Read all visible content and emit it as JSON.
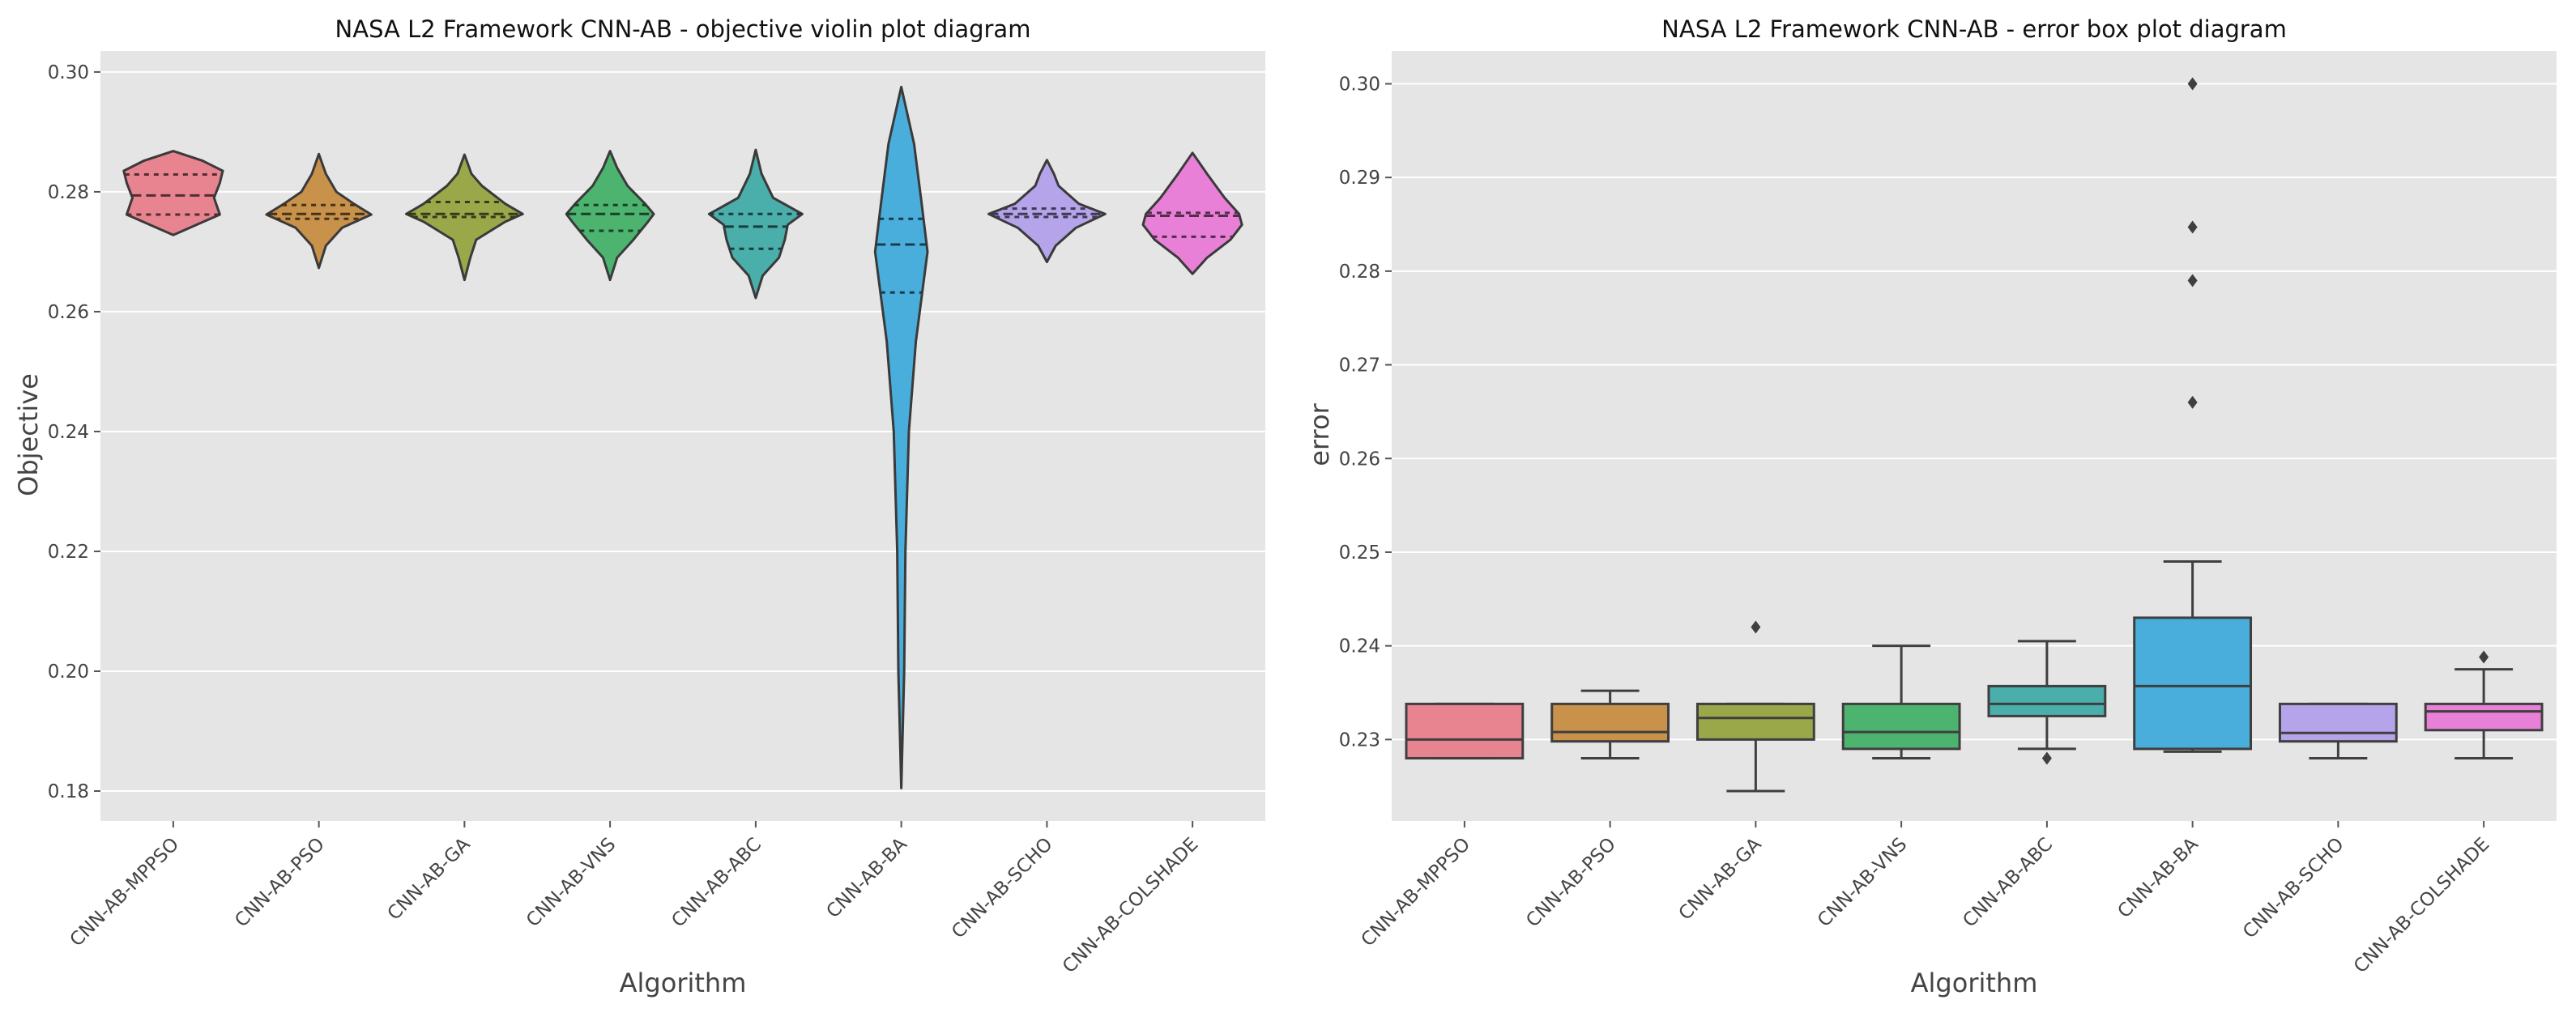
{
  "chart_data": [
    {
      "type": "violin",
      "title": "NASA L2 Framework CNN-AB -  objective violin plot diagram",
      "xlabel": "Algorithm",
      "ylabel": "Objective",
      "ylim": [
        0.175,
        0.3035
      ],
      "yticks": [
        0.18,
        0.2,
        0.22,
        0.24,
        0.26,
        0.28,
        0.3
      ],
      "ytick_labels": [
        "0.18",
        "0.20",
        "0.22",
        "0.24",
        "0.26",
        "0.28",
        "0.30"
      ],
      "grid": true,
      "categories": [
        "CNN-AB-MPPSO",
        "CNN-AB-PSO",
        "CNN-AB-GA",
        "CNN-AB-VNS",
        "CNN-AB-ABC",
        "CNN-AB-BA",
        "CNN-AB-SCHO",
        "CNN-AB-COLSHADE"
      ],
      "colors": [
        "#e8848f",
        "#c9924a",
        "#9aa84a",
        "#4db470",
        "#4aaeab",
        "#4aaedc",
        "#b5a4ea",
        "#e980d8"
      ],
      "violins": [
        {
          "profile": [
            [
              0.2728,
              0
            ],
            [
              0.2745,
              0.4
            ],
            [
              0.2762,
              0.8
            ],
            [
              0.279,
              0.7
            ],
            [
              0.2815,
              0.8
            ],
            [
              0.2835,
              0.85
            ],
            [
              0.2852,
              0.5
            ],
            [
              0.2868,
              0
            ]
          ],
          "q1": 0.2762,
          "median": 0.2794,
          "q3": 0.2829
        },
        {
          "profile": [
            [
              0.2673,
              0
            ],
            [
              0.271,
              0.12
            ],
            [
              0.274,
              0.4
            ],
            [
              0.2762,
              0.9
            ],
            [
              0.278,
              0.6
            ],
            [
              0.28,
              0.3
            ],
            [
              0.283,
              0.12
            ],
            [
              0.2863,
              0
            ]
          ],
          "q1": 0.2755,
          "median": 0.2763,
          "q3": 0.2778
        },
        {
          "profile": [
            [
              0.2653,
              0
            ],
            [
              0.269,
              0.1
            ],
            [
              0.272,
              0.2
            ],
            [
              0.275,
              0.7
            ],
            [
              0.2763,
              1.0
            ],
            [
              0.278,
              0.7
            ],
            [
              0.281,
              0.3
            ],
            [
              0.283,
              0.12
            ],
            [
              0.2862,
              0
            ]
          ],
          "q1": 0.2758,
          "median": 0.2763,
          "q3": 0.2783
        },
        {
          "profile": [
            [
              0.2653,
              0
            ],
            [
              0.269,
              0.12
            ],
            [
              0.272,
              0.4
            ],
            [
              0.275,
              0.65
            ],
            [
              0.2763,
              0.75
            ],
            [
              0.278,
              0.6
            ],
            [
              0.281,
              0.3
            ],
            [
              0.284,
              0.12
            ],
            [
              0.2868,
              0
            ]
          ],
          "q1": 0.2735,
          "median": 0.2763,
          "q3": 0.2778
        },
        {
          "profile": [
            [
              0.2623,
              0
            ],
            [
              0.266,
              0.12
            ],
            [
              0.269,
              0.4
            ],
            [
              0.272,
              0.5
            ],
            [
              0.2745,
              0.55
            ],
            [
              0.2763,
              0.8
            ],
            [
              0.279,
              0.3
            ],
            [
              0.283,
              0.1
            ],
            [
              0.287,
              0
            ]
          ],
          "q1": 0.2705,
          "median": 0.2742,
          "q3": 0.2763
        },
        {
          "profile": [
            [
              0.1805,
              0
            ],
            [
              0.2,
              0.05
            ],
            [
              0.22,
              0.07
            ],
            [
              0.24,
              0.13
            ],
            [
              0.255,
              0.25
            ],
            [
              0.27,
              0.45
            ],
            [
              0.278,
              0.35
            ],
            [
              0.288,
              0.22
            ],
            [
              0.2975,
              0
            ]
          ],
          "q1": 0.2632,
          "median": 0.2712,
          "q3": 0.2755
        },
        {
          "profile": [
            [
              0.2683,
              0
            ],
            [
              0.271,
              0.15
            ],
            [
              0.274,
              0.5
            ],
            [
              0.2763,
              1.0
            ],
            [
              0.278,
              0.55
            ],
            [
              0.281,
              0.2
            ],
            [
              0.283,
              0.12
            ],
            [
              0.2853,
              0
            ]
          ],
          "q1": 0.2758,
          "median": 0.2763,
          "q3": 0.2772
        },
        {
          "profile": [
            [
              0.2663,
              0
            ],
            [
              0.269,
              0.25
            ],
            [
              0.272,
              0.65
            ],
            [
              0.2745,
              0.85
            ],
            [
              0.2763,
              0.8
            ],
            [
              0.279,
              0.55
            ],
            [
              0.283,
              0.25
            ],
            [
              0.2865,
              0
            ]
          ],
          "q1": 0.2725,
          "median": 0.276,
          "q3": 0.2765
        }
      ]
    },
    {
      "type": "box",
      "title": "NASA L2 Framework CNN-AB - error box plot diagram",
      "xlabel": "Algorithm",
      "ylabel": "error",
      "ylim": [
        0.2213,
        0.3035
      ],
      "yticks": [
        0.23,
        0.24,
        0.25,
        0.26,
        0.27,
        0.28,
        0.29,
        0.3
      ],
      "ytick_labels": [
        "0.23",
        "0.24",
        "0.25",
        "0.26",
        "0.27",
        "0.28",
        "0.29",
        "0.30"
      ],
      "grid": true,
      "categories": [
        "CNN-AB-MPPSO",
        "CNN-AB-PSO",
        "CNN-AB-GA",
        "CNN-AB-VNS",
        "CNN-AB-ABC",
        "CNN-AB-BA",
        "CNN-AB-SCHO",
        "CNN-AB-COLSHADE"
      ],
      "colors": [
        "#e8848f",
        "#c9924a",
        "#9aa84a",
        "#4db470",
        "#4aaeab",
        "#4aaedc",
        "#b5a4ea",
        "#e980d8"
      ],
      "boxes": [
        {
          "whislo": 0.228,
          "q1": 0.228,
          "median": 0.23,
          "q3": 0.2338,
          "whishi": 0.2338,
          "fliers": []
        },
        {
          "whislo": 0.228,
          "q1": 0.2298,
          "median": 0.2308,
          "q3": 0.2338,
          "whishi": 0.2352,
          "fliers": []
        },
        {
          "whislo": 0.2245,
          "q1": 0.23,
          "median": 0.2323,
          "q3": 0.2338,
          "whishi": 0.2338,
          "fliers": [
            0.242
          ]
        },
        {
          "whislo": 0.228,
          "q1": 0.229,
          "median": 0.2308,
          "q3": 0.2338,
          "whishi": 0.24,
          "fliers": []
        },
        {
          "whislo": 0.229,
          "q1": 0.2325,
          "median": 0.2338,
          "q3": 0.2357,
          "whishi": 0.2405,
          "fliers": [
            0.228
          ]
        },
        {
          "whislo": 0.2287,
          "q1": 0.229,
          "median": 0.2357,
          "q3": 0.243,
          "whishi": 0.249,
          "fliers": [
            0.266,
            0.279,
            0.2847,
            0.3
          ]
        },
        {
          "whislo": 0.228,
          "q1": 0.2298,
          "median": 0.2307,
          "q3": 0.2338,
          "whishi": 0.2338,
          "fliers": []
        },
        {
          "whislo": 0.228,
          "q1": 0.231,
          "median": 0.233,
          "q3": 0.2338,
          "whishi": 0.2375,
          "fliers": [
            0.2388
          ]
        }
      ]
    }
  ]
}
